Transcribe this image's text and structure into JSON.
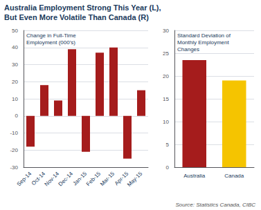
{
  "title": "Australia Employment Strong This Year (L),\nBut Even More Volatile Than Canada (R)",
  "annotations": [
    "Source: Statistics Canada, CIBC"
  ],
  "chart_data": [
    {
      "type": "bar",
      "title": "Change in Full-Time\nEmployment (000's)",
      "categories": [
        "Sep-14",
        "Oct-14",
        "Nov-14",
        "Dec-14",
        "Jan-15",
        "Feb-15",
        "Mar-15",
        "Apr-15",
        "May-15"
      ],
      "values": [
        -18,
        18,
        9,
        39,
        -21,
        37,
        40,
        -25,
        15
      ],
      "color": "#a51c1c",
      "ylim": [
        -30,
        50
      ],
      "yticks": [
        -30,
        -20,
        -10,
        0,
        10,
        20,
        30,
        40,
        50
      ],
      "grid": true
    },
    {
      "type": "bar",
      "title": "Standard Deviation of\nMonthly Employment\nChanges",
      "categories": [
        "Australia",
        "Canada"
      ],
      "values": [
        23.5,
        19.0
      ],
      "colors": [
        "#a51c1c",
        "#f5c400"
      ],
      "ylim": [
        0,
        30
      ],
      "yticks": [
        0,
        5,
        10,
        15,
        20,
        25,
        30
      ],
      "grid": true
    }
  ]
}
